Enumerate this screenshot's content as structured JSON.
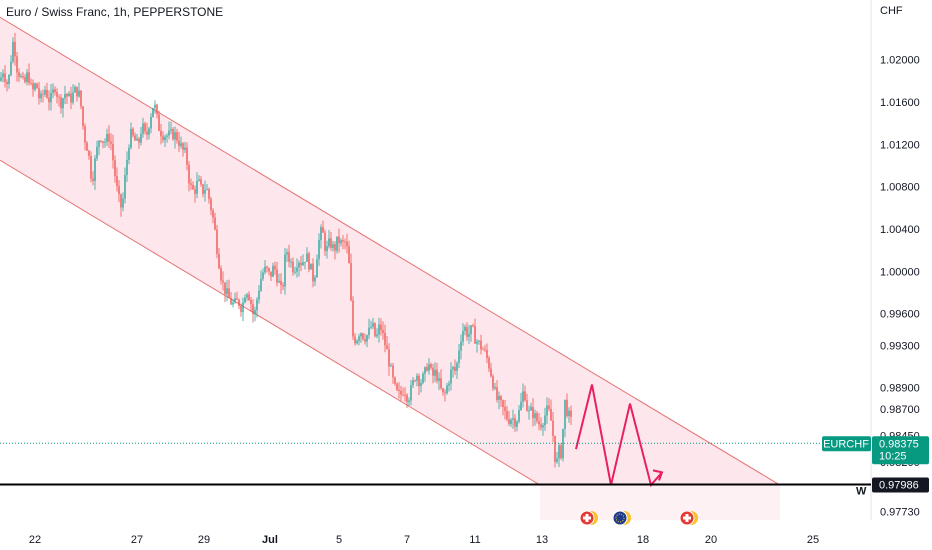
{
  "header": {
    "title": "Euro / Swiss Franc, 1h, PEPPERSTONE"
  },
  "colors": {
    "up": "#26a69a",
    "down": "#ef5350",
    "channel": "#e57373",
    "channel_fill": "#fde7ec",
    "projection": "#e91e63",
    "support": "#000000",
    "price_badge": "#089981",
    "price_line": "#089981"
  },
  "chart_data": {
    "type": "candlestick",
    "symbol": "EURCHF",
    "unit": "CHF",
    "current_price": "0.98375",
    "countdown": "10:25",
    "support_level": "0.97986",
    "support_label": "W",
    "ylim": [
      0.9765,
      1.0245
    ],
    "y_ticks": [
      "1.02000",
      "1.01600",
      "1.01200",
      "1.00800",
      "1.00400",
      "1.00000",
      "0.99600",
      "0.99300",
      "0.98900",
      "0.98700",
      "0.98450",
      "0.98200",
      "0.97730"
    ],
    "x_ticks": [
      {
        "label": "22",
        "bold": false
      },
      {
        "label": "27",
        "bold": false
      },
      {
        "label": "29",
        "bold": false
      },
      {
        "label": "Jul",
        "bold": true
      },
      {
        "label": "5",
        "bold": false
      },
      {
        "label": "7",
        "bold": false
      },
      {
        "label": "11",
        "bold": false
      },
      {
        "label": "13",
        "bold": false
      },
      {
        "label": "18",
        "bold": false
      },
      {
        "label": "20",
        "bold": false
      },
      {
        "label": "25",
        "bold": false
      }
    ],
    "price_path": [
      [
        0,
        1.018
      ],
      [
        3,
        1.019
      ],
      [
        8,
        1.0175
      ],
      [
        12,
        1.021
      ],
      [
        14,
        1.0222
      ],
      [
        16,
        1.0195
      ],
      [
        20,
        1.0185
      ],
      [
        24,
        1.0175
      ],
      [
        28,
        1.0188
      ],
      [
        32,
        1.0168
      ],
      [
        36,
        1.0178
      ],
      [
        40,
        1.016
      ],
      [
        45,
        1.0172
      ],
      [
        50,
        1.016
      ],
      [
        55,
        1.0175
      ],
      [
        60,
        1.0158
      ],
      [
        65,
        1.0168
      ],
      [
        70,
        1.0162
      ],
      [
        76,
        1.0172
      ],
      [
        80,
        1.0165
      ],
      [
        84,
        1.0128
      ],
      [
        88,
        1.0115
      ],
      [
        92,
        1.0085
      ],
      [
        96,
        1.011
      ],
      [
        100,
        1.013
      ],
      [
        104,
        1.0122
      ],
      [
        110,
        1.0128
      ],
      [
        114,
        1.0098
      ],
      [
        118,
        1.007
      ],
      [
        122,
        1.0058
      ],
      [
        126,
        1.0098
      ],
      [
        130,
        1.013
      ],
      [
        134,
        1.0125
      ],
      [
        138,
        1.0118
      ],
      [
        142,
        1.0138
      ],
      [
        146,
        1.0125
      ],
      [
        150,
        1.0145
      ],
      [
        154,
        1.016
      ],
      [
        158,
        1.0138
      ],
      [
        162,
        1.013
      ],
      [
        168,
        1.0128
      ],
      [
        174,
        1.013
      ],
      [
        178,
        1.0125
      ],
      [
        182,
        1.0115
      ],
      [
        186,
        1.011
      ],
      [
        190,
        1.008
      ],
      [
        194,
        1.0075
      ],
      [
        198,
        1.0085
      ],
      [
        202,
        1.0075
      ],
      [
        206,
        1.008
      ],
      [
        210,
        1.0065
      ],
      [
        214,
        1.0045
      ],
      [
        218,
        1.0015
      ],
      [
        222,
        0.999
      ],
      [
        226,
        0.998
      ],
      [
        230,
        0.9972
      ],
      [
        234,
        0.9968
      ],
      [
        238,
        0.9972
      ],
      [
        242,
        0.9965
      ],
      [
        246,
        0.9985
      ],
      [
        250,
        0.9975
      ],
      [
        254,
        0.9955
      ],
      [
        258,
        0.998
      ],
      [
        262,
        0.9998
      ],
      [
        266,
        1.0002
      ],
      [
        270,
        0.9995
      ],
      [
        274,
        1.0005
      ],
      [
        278,
        0.9992
      ],
      [
        282,
        0.9978
      ],
      [
        286,
        1.0022
      ],
      [
        290,
        1.001
      ],
      [
        294,
        1.0002
      ],
      [
        298,
        1.0012
      ],
      [
        302,
        1.0008
      ],
      [
        306,
        1.0015
      ],
      [
        310,
        1.0005
      ],
      [
        314,
        0.999
      ],
      [
        318,
        1.0025
      ],
      [
        322,
        1.004
      ],
      [
        326,
        1.0018
      ],
      [
        330,
        1.0028
      ],
      [
        334,
        1.002
      ],
      [
        338,
        1.003
      ],
      [
        342,
        1.0025
      ],
      [
        346,
        1.0028
      ],
      [
        350,
        0.9998
      ],
      [
        352,
        0.994
      ],
      [
        356,
        0.9935
      ],
      [
        360,
        0.9945
      ],
      [
        364,
        0.9938
      ],
      [
        368,
        0.994
      ],
      [
        372,
        0.995
      ],
      [
        376,
        0.9935
      ],
      [
        380,
        0.995
      ],
      [
        384,
        0.9935
      ],
      [
        388,
        0.992
      ],
      [
        392,
        0.99
      ],
      [
        396,
        0.9885
      ],
      [
        400,
        0.9882
      ],
      [
        404,
        0.989
      ],
      [
        408,
        0.988
      ],
      [
        412,
        0.989
      ],
      [
        416,
        0.9905
      ],
      [
        420,
        0.9895
      ],
      [
        424,
        0.99
      ],
      [
        428,
        0.9915
      ],
      [
        432,
        0.99
      ],
      [
        436,
        0.9905
      ],
      [
        440,
        0.989
      ],
      [
        444,
        0.988
      ],
      [
        448,
        0.9895
      ],
      [
        452,
        0.9908
      ],
      [
        456,
        0.9905
      ],
      [
        460,
        0.9935
      ],
      [
        464,
        0.9948
      ],
      [
        468,
        0.994
      ],
      [
        472,
        0.9945
      ],
      [
        476,
        0.9935
      ],
      [
        480,
        0.993
      ],
      [
        484,
        0.9925
      ],
      [
        488,
        0.9915
      ],
      [
        492,
        0.99
      ],
      [
        496,
        0.988
      ],
      [
        500,
        0.9875
      ],
      [
        504,
        0.9868
      ],
      [
        508,
        0.986
      ],
      [
        512,
        0.9862
      ],
      [
        516,
        0.9858
      ],
      [
        520,
        0.987
      ],
      [
        524,
        0.989
      ],
      [
        528,
        0.9865
      ],
      [
        532,
        0.9868
      ],
      [
        536,
        0.986
      ],
      [
        540,
        0.9855
      ],
      [
        544,
        0.9862
      ],
      [
        548,
        0.987
      ],
      [
        552,
        0.9855
      ],
      [
        556,
        0.9815
      ],
      [
        560,
        0.9835
      ],
      [
        562,
        0.9822
      ],
      [
        564,
        0.988
      ],
      [
        568,
        0.9865
      ],
      [
        572,
        0.9855
      ]
    ],
    "channel_upper": [
      [
        0,
        1.024
      ],
      [
        780,
        0.9798
      ]
    ],
    "channel_lower": [
      [
        0,
        1.0105
      ],
      [
        540,
        0.9798
      ]
    ],
    "projection_path": [
      [
        576,
        0.9832
      ],
      [
        592,
        0.9893
      ],
      [
        611,
        0.9798
      ],
      [
        630,
        0.9875
      ],
      [
        651,
        0.9798
      ],
      [
        662,
        0.981
      ]
    ]
  }
}
